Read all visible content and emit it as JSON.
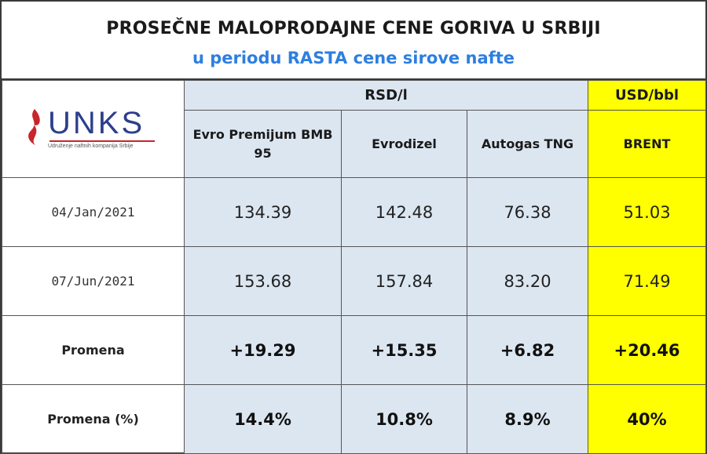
{
  "title": "PROSEČNE MALOPRODAJNE CENE GORIVA U SRBIJI",
  "subtitle": "u periodu RASTA cene sirove nafte",
  "logo": {
    "name": "UNKS",
    "tagline": "Udruženje naftnih kompanija Srbije",
    "colors": {
      "text": "#2d3e8c",
      "flame": "#c9252c"
    }
  },
  "units": {
    "rsd": "RSD/l",
    "usd": "USD/bbl"
  },
  "columns": [
    "Evro Premijum BMB 95",
    "Evrodizel",
    "Autogas TNG",
    "BRENT"
  ],
  "rows": [
    {
      "label": "04/Jan/2021",
      "values": [
        "134.39",
        "142.48",
        "76.38",
        "51.03"
      ]
    },
    {
      "label": "07/Jun/2021",
      "values": [
        "153.68",
        "157.84",
        "83.20",
        "71.49"
      ]
    },
    {
      "label": "Promena",
      "values": [
        "+19.29",
        "+15.35",
        "+6.82",
        "+20.46"
      ]
    },
    {
      "label": "Promena (%)",
      "values": [
        "14.4%",
        "10.8%",
        "8.9%",
        "40%"
      ]
    }
  ],
  "colors": {
    "header_blue_bg": "#dce6f1",
    "brent_yellow": "#ffff00",
    "subtitle_blue": "#2d7fe0"
  }
}
